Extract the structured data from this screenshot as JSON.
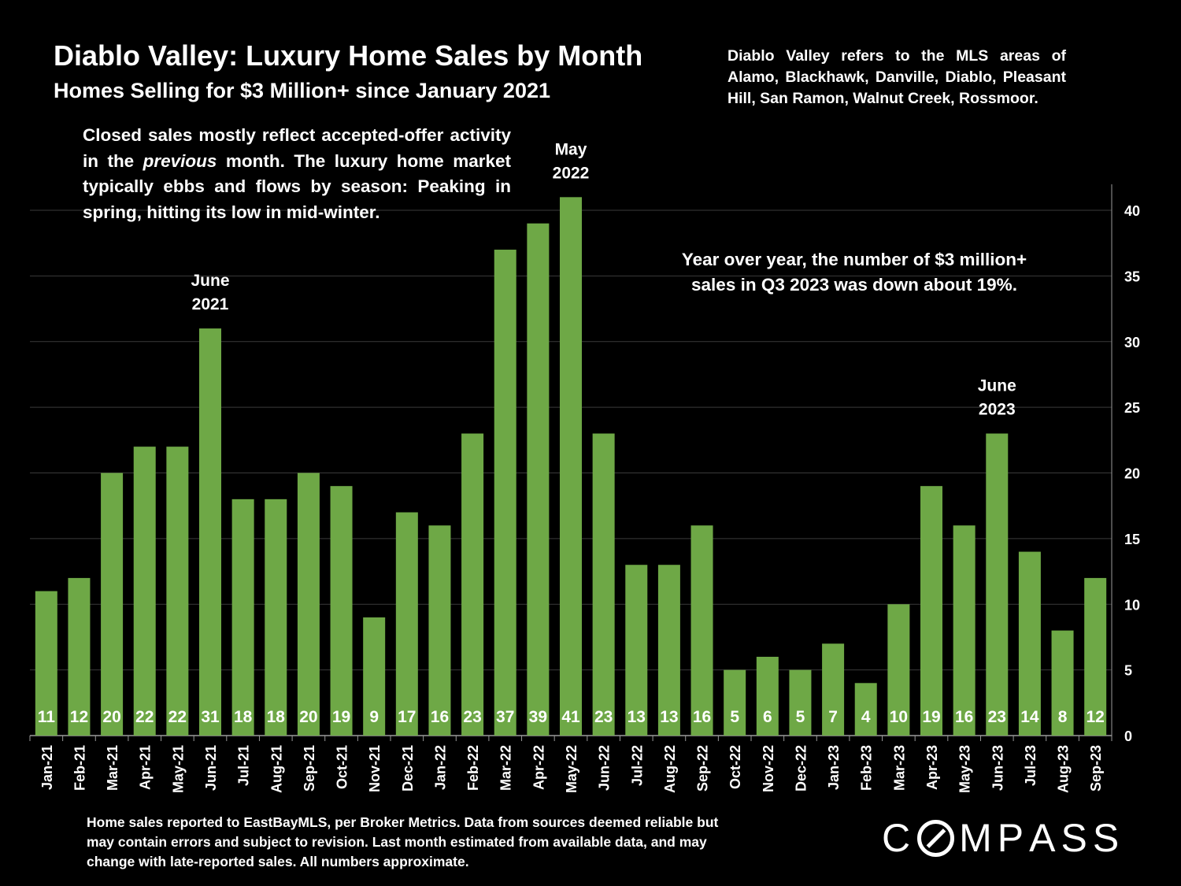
{
  "header": {
    "title": "Diablo Valley:  Luxury Home Sales by Month",
    "subtitle": "Homes Selling for $3 Million+ since January 2021"
  },
  "notes": {
    "region": "Diablo Valley refers to the MLS areas of Alamo, Blackhawk, Danville, Diablo, Pleasant Hill, San Ramon, Walnut Creek, Rossmoor.",
    "closed_before": "Closed sales mostly reflect accepted-offer activity in the ",
    "closed_italic": "previous",
    "closed_after": " month. The luxury home market typically ebbs and flows by season: Peaking in spring, hitting its low in mid-winter.",
    "yoy": "Year over year, the number of $3 million+ sales in Q3 2023 was down about 19%."
  },
  "footnote": "Home sales reported to EastBayMLS, per Broker Metrics. Data from sources deemed reliable but may contain errors and subject to revision.  Last month estimated from available data, and may change with late-reported sales. All numbers approximate.",
  "brand": {
    "logo_text": "COMPASS"
  },
  "colors": {
    "background": "#000000",
    "bar": "#6ea846",
    "text": "#ffffff",
    "grid": "#3a3a3a",
    "axis": "#9a9a9a"
  },
  "chart_data": {
    "type": "bar",
    "title": "Diablo Valley:  Luxury Home Sales by Month",
    "categories": [
      "Jan-21",
      "Feb-21",
      "Mar-21",
      "Apr-21",
      "May-21",
      "Jun-21",
      "Jul-21",
      "Aug-21",
      "Sep-21",
      "Oct-21",
      "Nov-21",
      "Dec-21",
      "Jan-22",
      "Feb-22",
      "Mar-22",
      "Apr-22",
      "May-22",
      "Jun-22",
      "Jul-22",
      "Aug-22",
      "Sep-22",
      "Oct-22",
      "Nov-22",
      "Dec-22",
      "Jan-23",
      "Feb-23",
      "Mar-23",
      "Apr-23",
      "May-23",
      "Jun-23",
      "Jul-23",
      "Aug-23",
      "Sep-23"
    ],
    "values": [
      11,
      12,
      20,
      22,
      22,
      31,
      18,
      18,
      20,
      19,
      9,
      17,
      16,
      23,
      37,
      39,
      41,
      23,
      13,
      13,
      16,
      5,
      6,
      5,
      7,
      4,
      10,
      19,
      16,
      23,
      14,
      8,
      12
    ],
    "ylim": [
      0,
      42
    ],
    "yticks": [
      0,
      5,
      10,
      15,
      20,
      25,
      30,
      35,
      40
    ],
    "y_axis_side": "right",
    "grid": true,
    "data_labels": "inside-bottom",
    "annotations": [
      {
        "category": "Jun-21",
        "lines": [
          "June",
          "2021"
        ]
      },
      {
        "category": "May-22",
        "lines": [
          "May",
          "2022"
        ]
      },
      {
        "category": "Jun-23",
        "lines": [
          "June",
          "2023"
        ]
      }
    ]
  }
}
